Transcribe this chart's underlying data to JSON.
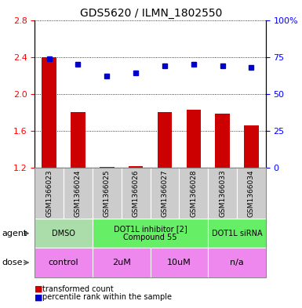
{
  "title": "GDS5620 / ILMN_1802550",
  "samples": [
    "GSM1366023",
    "GSM1366024",
    "GSM1366025",
    "GSM1366026",
    "GSM1366027",
    "GSM1366028",
    "GSM1366033",
    "GSM1366034"
  ],
  "transformed_count": [
    2.4,
    1.8,
    1.21,
    1.22,
    1.8,
    1.83,
    1.79,
    1.66
  ],
  "percentile_rank": [
    74,
    70,
    62,
    64,
    69,
    70,
    69,
    68
  ],
  "ylim_left": [
    1.2,
    2.8
  ],
  "ylim_right": [
    0,
    100
  ],
  "yticks_left": [
    1.2,
    1.6,
    2.0,
    2.4,
    2.8
  ],
  "yticks_right": [
    0,
    25,
    50,
    75,
    100
  ],
  "bar_color": "#cc0000",
  "dot_color": "#0000cc",
  "bar_width": 0.5,
  "agent_groups": [
    {
      "label": "DMSO",
      "start": 0,
      "end": 2,
      "color": "#aaddaa"
    },
    {
      "label": "DOT1L inhibitor [2]\nCompound 55",
      "start": 2,
      "end": 6,
      "color": "#66ee66"
    },
    {
      "label": "DOT1L siRNA",
      "start": 6,
      "end": 8,
      "color": "#66ee66"
    }
  ],
  "dose_groups": [
    {
      "label": "control",
      "start": 0,
      "end": 2,
      "color": "#ee88ee"
    },
    {
      "label": "2uM",
      "start": 2,
      "end": 4,
      "color": "#ee88ee"
    },
    {
      "label": "10uM",
      "start": 4,
      "end": 6,
      "color": "#ee88ee"
    },
    {
      "label": "n/a",
      "start": 6,
      "end": 8,
      "color": "#ee88ee"
    }
  ],
  "legend_bar_label": "transformed count",
  "legend_dot_label": "percentile rank within the sample",
  "agent_label": "agent",
  "dose_label": "dose",
  "sample_bg": "#cccccc",
  "grid_color": "#000000",
  "title_fontsize": 10,
  "tick_fontsize": 8,
  "label_fontsize": 8,
  "table_fontsize": 8
}
